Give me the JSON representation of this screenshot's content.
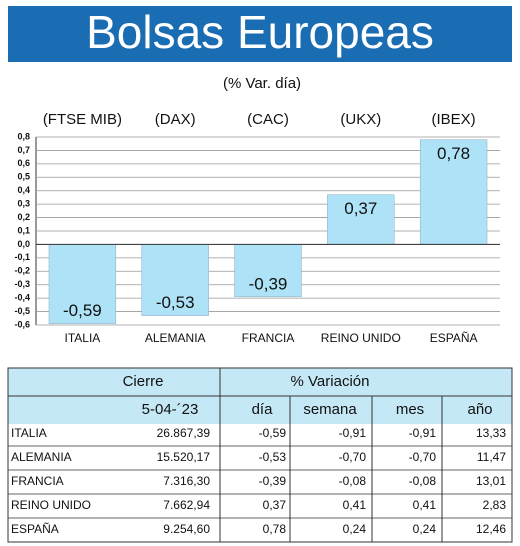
{
  "chart_data": {
    "type": "bar",
    "title": "Bolsas Europeas",
    "subtitle": "(% Var. día)",
    "indices": [
      "(FTSE MIB)",
      "(DAX)",
      "(CAC)",
      "(UKX)",
      "(IBEX)"
    ],
    "categories": [
      "ITALIA",
      "ALEMANIA",
      "FRANCIA",
      "REINO UNIDO",
      "ESPAÑA"
    ],
    "values": [
      -0.59,
      -0.53,
      -0.39,
      0.37,
      0.78
    ],
    "value_labels": [
      "-0,59",
      "-0,53",
      "-0,39",
      "0,37",
      "0,78"
    ],
    "color": "#aee2f6",
    "ylim": [
      -0.6,
      0.8
    ],
    "yticks": [
      {
        "value": 0.8,
        "label": "0,8"
      },
      {
        "value": 0.7,
        "label": "0,7"
      },
      {
        "value": 0.6,
        "label": "0,6"
      },
      {
        "value": 0.5,
        "label": "0,5"
      },
      {
        "value": 0.4,
        "label": "0,4"
      },
      {
        "value": 0.3,
        "label": "0,3"
      },
      {
        "value": 0.2,
        "label": "0,2"
      },
      {
        "value": 0.1,
        "label": "0,1"
      },
      {
        "value": 0,
        "label": "0,0"
      },
      {
        "value": -0.1,
        "label": "-0,1"
      },
      {
        "value": -0.2,
        "label": "-0,2"
      },
      {
        "value": -0.3,
        "label": "-0,3"
      },
      {
        "value": -0.4,
        "label": "-0,4"
      },
      {
        "value": -0.5,
        "label": "-0,5"
      },
      {
        "value": -0.6,
        "label": "-0,6"
      }
    ],
    "grid": true
  },
  "table": {
    "header": [
      "Cierre",
      "% Variación"
    ],
    "subheader": [
      "5-04-´23",
      "día",
      "semana",
      "mes",
      "año"
    ],
    "rows": [
      [
        "ITALIA",
        "26.867,39",
        "-0,59",
        "-0,91",
        "-0,91",
        "13,33"
      ],
      [
        "ALEMANIA",
        "15.520,17",
        "-0,53",
        "-0,70",
        "-0,70",
        "11,47"
      ],
      [
        "FRANCIA",
        "7.316,30",
        "-0,39",
        "-0,08",
        "-0,08",
        "13,01"
      ],
      [
        "REINO UNIDO",
        "7.662,94",
        "0,37",
        "0,41",
        "0,41",
        "2,83"
      ],
      [
        "ESPAÑA",
        "9.254,60",
        "0,78",
        "0,24",
        "0,24",
        "12,46"
      ]
    ]
  }
}
